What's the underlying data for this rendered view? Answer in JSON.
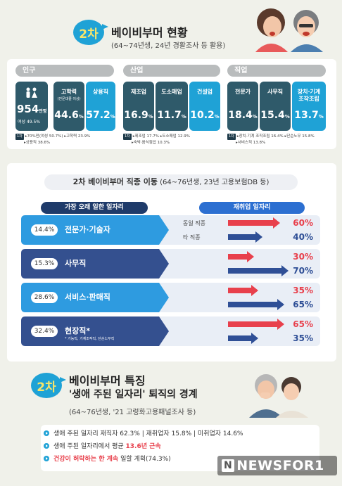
{
  "header": {
    "badge": "2차",
    "title": "베이비부머 현황",
    "subtitle": "(64~74년생, 24년 경활조사 등 활용)"
  },
  "population": {
    "label": "인구",
    "total_value": "954",
    "total_unit": "만명",
    "female_share": "여성 49.5%",
    "edu_label": "고학력",
    "edu_sub": "(전문대졸 이상)",
    "edu_value": "44.6",
    "emp_label": "상용직",
    "emp_value": "57.2",
    "pct_unit": "%",
    "note_tag": "1차",
    "note_1": "▸70%만(여성 50.7%) ▸고학력 23.9%",
    "note_2": "▸상용직 38.6%"
  },
  "industry": {
    "label": "산업",
    "items": [
      {
        "name": "제조업",
        "value": "16.9"
      },
      {
        "name": "도소매업",
        "value": "11.7"
      },
      {
        "name": "건설업",
        "value": "10.2"
      }
    ],
    "pct_unit": "%",
    "note_tag": "1차",
    "note_1": "▸제조업 17.7% ▸도소매업 12.9%",
    "note_2": "▸숙박·음식점업 10.3%"
  },
  "occupation": {
    "label": "직업",
    "items": [
      {
        "name": "전문가",
        "value": "18.4"
      },
      {
        "name": "사무직",
        "value": "15.4"
      },
      {
        "name": "장치·기계 조작조립",
        "value": "13.7"
      }
    ],
    "pct_unit": "%",
    "note_tag": "1차",
    "note_1": "▸장치·기계 조작조립 16.4% ▸단순노무 15.8%",
    "note_2": "▸서비스직 13.8%"
  },
  "mobility": {
    "title": "2차 베이비부머 직종 이동",
    "subtitle": "(64~76년생, 23년 고용보험DB 등)",
    "left_head": "가장 오래 일한 일자리",
    "right_head": "재취업 일자리",
    "same_label": "동일 직종",
    "other_label": "타 직종",
    "rows": [
      {
        "pct": "14.4%",
        "name": "전문가·기술자",
        "footnote": "",
        "same": 60,
        "other": 40,
        "same_text": "60%",
        "other_text": "40%"
      },
      {
        "pct": "15.3%",
        "name": "사무직",
        "footnote": "",
        "same": 30,
        "other": 70,
        "same_text": "30%",
        "other_text": "70%"
      },
      {
        "pct": "28.6%",
        "name": "서비스·판매직",
        "footnote": "",
        "same": 35,
        "other": 65,
        "same_text": "35%",
        "other_text": "65%"
      },
      {
        "pct": "32.4%",
        "name": "현장직*",
        "footnote": "* 기능직, 기계조작직, 단순노무직",
        "same": 65,
        "other": 35,
        "same_text": "65%",
        "other_text": "35%"
      }
    ],
    "colors": {
      "same": "#e8404c",
      "other": "#2f4f96"
    }
  },
  "traits": {
    "badge": "2차",
    "title": "베이비부머 특징",
    "title2": "'생애 주된 일자리' 퇴직의 경계",
    "subtitle": "(64~76년생, '21 고령화고용패널조사 등)",
    "b1": "생애 주된 일자리 재직자 62.3% | 재취업자 15.8% | 미취업자 14.6%",
    "b2_pre": "생애 주된 일자리에서 평균 ",
    "b2_hl": "13.6년 근속",
    "b3_hl": "건강이 허락하는 한 계속",
    "b3_post": " 일할 계획(74.3%)"
  },
  "watermark": {
    "n": "N",
    "text": "NEWSFOR1"
  }
}
